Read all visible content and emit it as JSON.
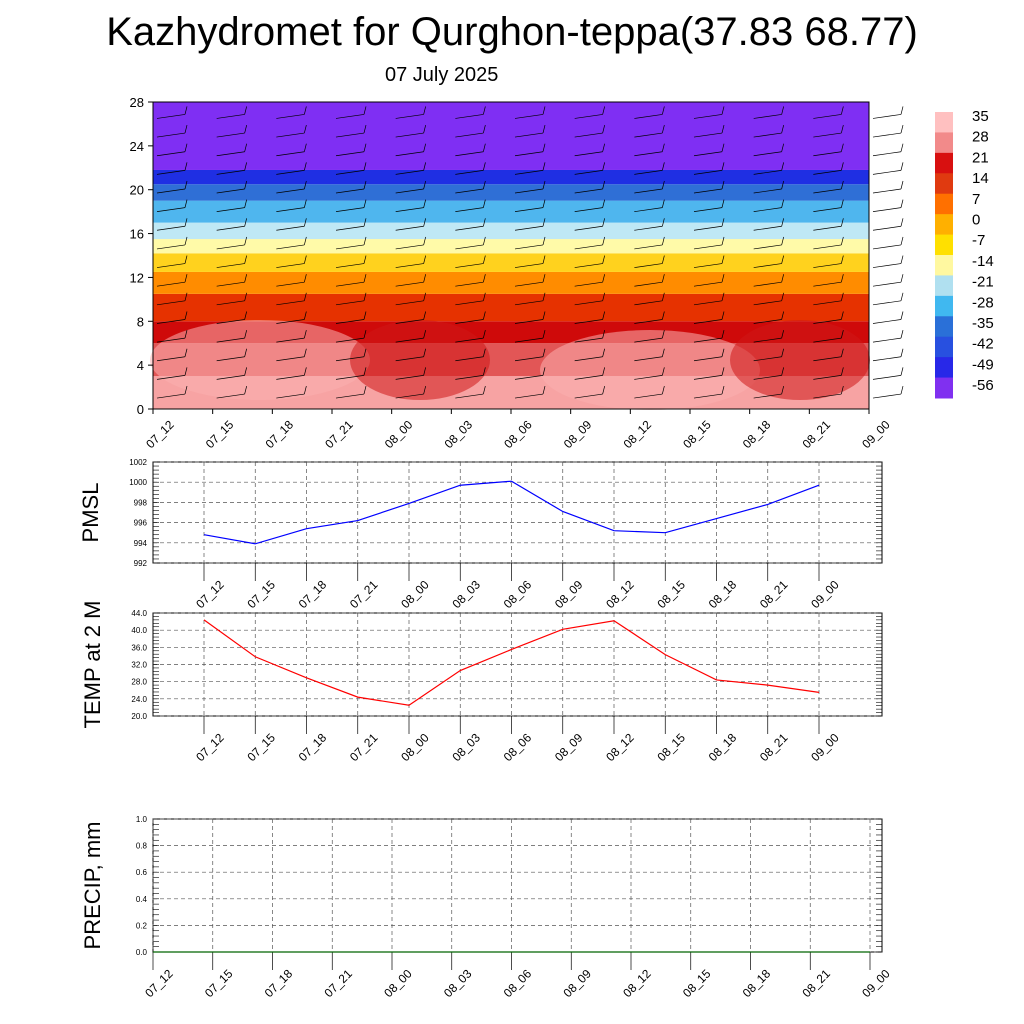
{
  "title": "Kazhydromet for Qurghon-teppa(37.83 68.77)",
  "date": "07 July 2025",
  "chart_data": [
    {
      "type": "heatmap",
      "name": "temperature-height cross section",
      "x_ticks": [
        "07_12",
        "07_15",
        "07_18",
        "07_21",
        "08_00",
        "08_03",
        "08_06",
        "08_09",
        "08_12",
        "08_15",
        "08_18",
        "08_21",
        "09_00"
      ],
      "y_ticks": [
        "0",
        "4",
        "8",
        "12",
        "16",
        "20",
        "24",
        "28"
      ],
      "ylim": [
        0,
        28
      ],
      "colorbar_labels": [
        "35",
        "28",
        "21",
        "14",
        "7",
        "0",
        "-7",
        "-14",
        "-21",
        "-28",
        "-35",
        "-42",
        "-49",
        "-56"
      ],
      "colorbar_colors": [
        "#ffc0c0",
        "#f28a8a",
        "#d81010",
        "#e03a10",
        "#ff7000",
        "#ffb000",
        "#ffe000",
        "#fff8a0",
        "#b0e0f0",
        "#40b8f0",
        "#2a70d8",
        "#2850e0",
        "#2828e8",
        "#8030f0"
      ],
      "bands": [
        {
          "from": 0,
          "to": 3,
          "color": "#f7a3a3"
        },
        {
          "from": 3,
          "to": 6,
          "color": "#e25656"
        },
        {
          "from": 6,
          "to": 8,
          "color": "#cf0a0a"
        },
        {
          "from": 8,
          "to": 10.5,
          "color": "#e63200"
        },
        {
          "from": 10.5,
          "to": 12.5,
          "color": "#ff8c00"
        },
        {
          "from": 12.5,
          "to": 14.2,
          "color": "#ffd21e"
        },
        {
          "from": 14.2,
          "to": 15.5,
          "color": "#fffaa8"
        },
        {
          "from": 15.5,
          "to": 17,
          "color": "#bfe8f5"
        },
        {
          "from": 17,
          "to": 19,
          "color": "#4fb6ee"
        },
        {
          "from": 19,
          "to": 20.5,
          "color": "#2f6fd6"
        },
        {
          "from": 20.5,
          "to": 21.8,
          "color": "#1f2fe3"
        },
        {
          "from": 21.8,
          "to": 28,
          "color": "#7f2ff3"
        }
      ]
    },
    {
      "type": "line",
      "ylabel": "PMSL",
      "x": [
        "07_12",
        "07_15",
        "07_18",
        "07_21",
        "08_00",
        "08_03",
        "08_06",
        "08_09",
        "08_12",
        "08_15",
        "08_18",
        "08_21",
        "09_00"
      ],
      "y_ticks": [
        "992",
        "994",
        "996",
        "998",
        "1000",
        "1002"
      ],
      "ylim": [
        992,
        1002
      ],
      "color": "#0000ff",
      "values": [
        994.8,
        993.9,
        995.4,
        996.2,
        997.9,
        999.7,
        1000.1,
        997.1,
        995.2,
        995.0,
        996.4,
        997.8,
        999.7
      ]
    },
    {
      "type": "line",
      "ylabel": "TEMP at 2 M",
      "x": [
        "07_12",
        "07_15",
        "07_18",
        "07_21",
        "08_00",
        "08_03",
        "08_06",
        "08_09",
        "08_12",
        "08_15",
        "08_18",
        "08_21",
        "09_00"
      ],
      "y_ticks": [
        "20.0",
        "24.0",
        "28.0",
        "32.0",
        "36.0",
        "40.0",
        "44.0"
      ],
      "ylim": [
        20,
        44
      ],
      "color": "#ff0000",
      "values": [
        42.4,
        33.8,
        28.9,
        24.4,
        22.5,
        30.6,
        35.5,
        40.2,
        42.2,
        34.3,
        28.4,
        27.2,
        25.5
      ]
    },
    {
      "type": "line",
      "ylabel": "PRECIP, mm",
      "x": [
        "07_12",
        "07_15",
        "07_18",
        "07_21",
        "08_00",
        "08_03",
        "08_06",
        "08_09",
        "08_12",
        "08_15",
        "08_18",
        "08_21",
        "09_00"
      ],
      "y_ticks": [
        "0.0",
        "0.2",
        "0.4",
        "0.6",
        "0.8",
        "1.0"
      ],
      "ylim": [
        0,
        1
      ],
      "color": "#006400",
      "values": [
        0,
        0,
        0,
        0,
        0,
        0,
        0,
        0,
        0,
        0,
        0,
        0,
        0
      ]
    }
  ]
}
